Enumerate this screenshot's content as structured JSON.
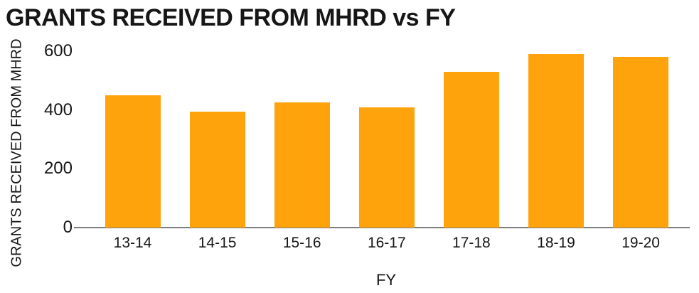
{
  "chart_data": {
    "type": "bar",
    "title": "GRANTS RECEIVED FROM MHRD vs FY",
    "xlabel": "FY",
    "ylabel": "GRANTS RECEIVED FROM MHRD",
    "categories": [
      "13-14",
      "14-15",
      "15-16",
      "16-17",
      "17-18",
      "18-19",
      "19-20"
    ],
    "values": [
      450,
      395,
      425,
      410,
      530,
      590,
      580
    ],
    "yticks": [
      0,
      200,
      400,
      600
    ],
    "ylim": [
      0,
      600
    ],
    "grid": false,
    "legend": "none",
    "bar_color": "#FFA30D",
    "axis_line_color": "#7d7d7d",
    "text_color": "#161616"
  }
}
